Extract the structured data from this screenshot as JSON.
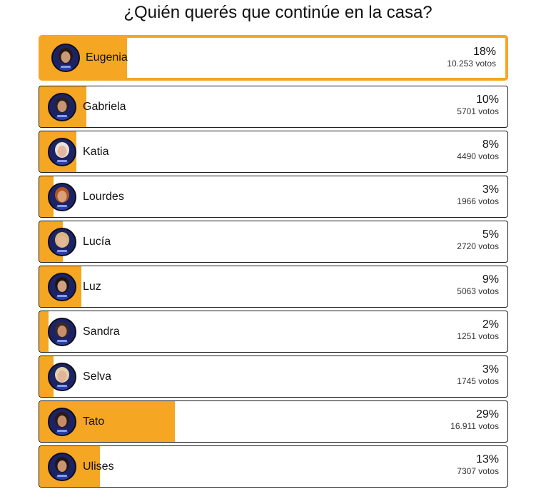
{
  "poll": {
    "title": "¿Quién querés que continúe en la casa?",
    "accent_color": "#f5a623",
    "options": [
      {
        "name": "Eugenia",
        "percent": "18%",
        "votes": "10.253 votos",
        "fill": 0.185,
        "selected": true,
        "hair": "#2a1810",
        "skin": "#c99a7a",
        "icon": "avatar-icon"
      },
      {
        "name": "Gabriela",
        "percent": "10%",
        "votes": "5701 votos",
        "fill": 0.1,
        "selected": false,
        "hair": "#2b211c",
        "skin": "#c79478",
        "icon": "avatar-icon"
      },
      {
        "name": "Katia",
        "percent": "8%",
        "votes": "4490 votos",
        "fill": 0.08,
        "selected": false,
        "hair": "#e8e2d8",
        "skin": "#e1b7a0",
        "icon": "avatar-icon"
      },
      {
        "name": "Lourdes",
        "percent": "3%",
        "votes": "1966 votos",
        "fill": 0.03,
        "selected": false,
        "hair": "#b4541f",
        "skin": "#d9a07a",
        "icon": "avatar-icon"
      },
      {
        "name": "Lucía",
        "percent": "5%",
        "votes": "2720 votos",
        "fill": 0.05,
        "selected": false,
        "hair": "#d9b877",
        "skin": "#e3b69a",
        "icon": "avatar-icon"
      },
      {
        "name": "Luz",
        "percent": "9%",
        "votes": "5063 votos",
        "fill": 0.09,
        "selected": false,
        "hair": "#1e1410",
        "skin": "#cf9f82",
        "icon": "avatar-icon"
      },
      {
        "name": "Sandra",
        "percent": "2%",
        "votes": "1251 votos",
        "fill": 0.02,
        "selected": false,
        "hair": "#3a2a22",
        "skin": "#c98e6e",
        "icon": "avatar-icon"
      },
      {
        "name": "Selva",
        "percent": "3%",
        "votes": "1745 votos",
        "fill": 0.03,
        "selected": false,
        "hair": "#e5d3a8",
        "skin": "#e4b49a",
        "icon": "avatar-icon"
      },
      {
        "name": "Tato",
        "percent": "29%",
        "votes": "16.911 votos",
        "fill": 0.29,
        "selected": false,
        "hair": "#2a1a12",
        "skin": "#c58c6c",
        "icon": "avatar-icon"
      },
      {
        "name": "Ulises",
        "percent": "13%",
        "votes": "7307 votos",
        "fill": 0.13,
        "selected": false,
        "hair": "#1f1612",
        "skin": "#c9946f",
        "icon": "avatar-icon"
      }
    ]
  }
}
